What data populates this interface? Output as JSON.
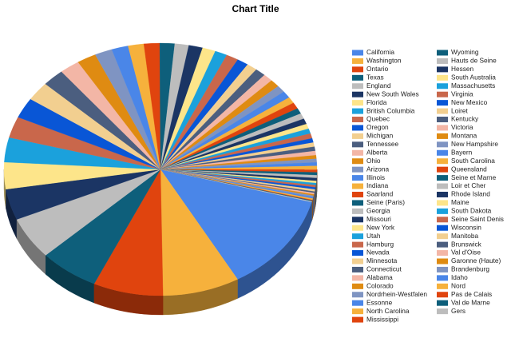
{
  "chart_data": {
    "type": "pie",
    "title": "Chart Title",
    "categories": [
      "California",
      "Washington",
      "Ontario",
      "Texas",
      "England",
      "New South Wales",
      "Florida",
      "British Columbia",
      "Quebec",
      "Oregon",
      "Michigan",
      "Tennessee",
      "Alberta",
      "Ohio",
      "Arizona",
      "Illinois",
      "Indiana",
      "Saarland",
      "Seine (Paris)",
      "Georgia",
      "Missouri",
      "New York",
      "Utah",
      "Hamburg",
      "Nevada",
      "Minnesota",
      "Connecticut",
      "Alabama",
      "Colorado",
      "Nordrhein-Westfalen",
      "Essonne",
      "North Carolina",
      "Mississippi",
      "Wyoming",
      "Hauts de Seine",
      "Hessen",
      "South Australia",
      "Massachusetts",
      "Virginia",
      "New Mexico",
      "Loiret",
      "Kentucky",
      "Victoria",
      "Montana",
      "New Hampshire",
      "Bayern",
      "South Carolina",
      "Queensland",
      "Seine et Marne",
      "Loir et Cher",
      "Rhode Island",
      "Maine",
      "South Dakota",
      "Seine Saint Denis",
      "Wisconsin",
      "Manitoba",
      "Brunswick",
      "Val d'Oise",
      "Garonne (Haute)",
      "Brandenburg",
      "Idaho",
      "Nord",
      "Pas de Calais",
      "Val de Marne",
      "Gers"
    ],
    "values": [
      140,
      88,
      80,
      68,
      60,
      44,
      38,
      35,
      30,
      29,
      27,
      25,
      23,
      22,
      20,
      19,
      18,
      18,
      17,
      16,
      16,
      15,
      14,
      14,
      13,
      12,
      12,
      11,
      11,
      10,
      10,
      9,
      9,
      8,
      8,
      8,
      7,
      7,
      7,
      6,
      6,
      6,
      6,
      5,
      5,
      5,
      5,
      4,
      4,
      4,
      4,
      3,
      3,
      3,
      3,
      3,
      2,
      2,
      2,
      2,
      2,
      2,
      1,
      1,
      1
    ],
    "colors": [
      "#4a86e8",
      "#f6b13c",
      "#e0440e",
      "#0e5f7b",
      "#bdbdbd",
      "#1b3564",
      "#fde58a",
      "#1ba1dc",
      "#c9674b",
      "#0956d6",
      "#f2cf90",
      "#4b5e7f",
      "#f3b6a6",
      "#df8b12",
      "#7f94c2",
      "#4a86e8",
      "#f6b13c",
      "#e0440e",
      "#0e5f7b",
      "#bdbdbd",
      "#1b3564",
      "#fde58a",
      "#1ba1dc",
      "#c9674b",
      "#0956d6",
      "#f2cf90",
      "#4b5e7f",
      "#f3b6a6",
      "#df8b12",
      "#7f94c2",
      "#4a86e8",
      "#f6b13c",
      "#e0440e",
      "#0e5f7b",
      "#bdbdbd",
      "#1b3564",
      "#fde58a",
      "#1ba1dc",
      "#c9674b",
      "#0956d6",
      "#f2cf90",
      "#4b5e7f",
      "#f3b6a6",
      "#df8b12",
      "#7f94c2",
      "#4a86e8",
      "#f6b13c",
      "#e0440e",
      "#0e5f7b",
      "#bdbdbd",
      "#1b3564",
      "#fde58a",
      "#1ba1dc",
      "#c9674b",
      "#0956d6",
      "#f2cf90",
      "#4b5e7f",
      "#f3b6a6",
      "#df8b12",
      "#7f94c2",
      "#4a86e8",
      "#f6b13c",
      "#e0440e",
      "#0e5f7b",
      "#bdbdbd"
    ]
  }
}
